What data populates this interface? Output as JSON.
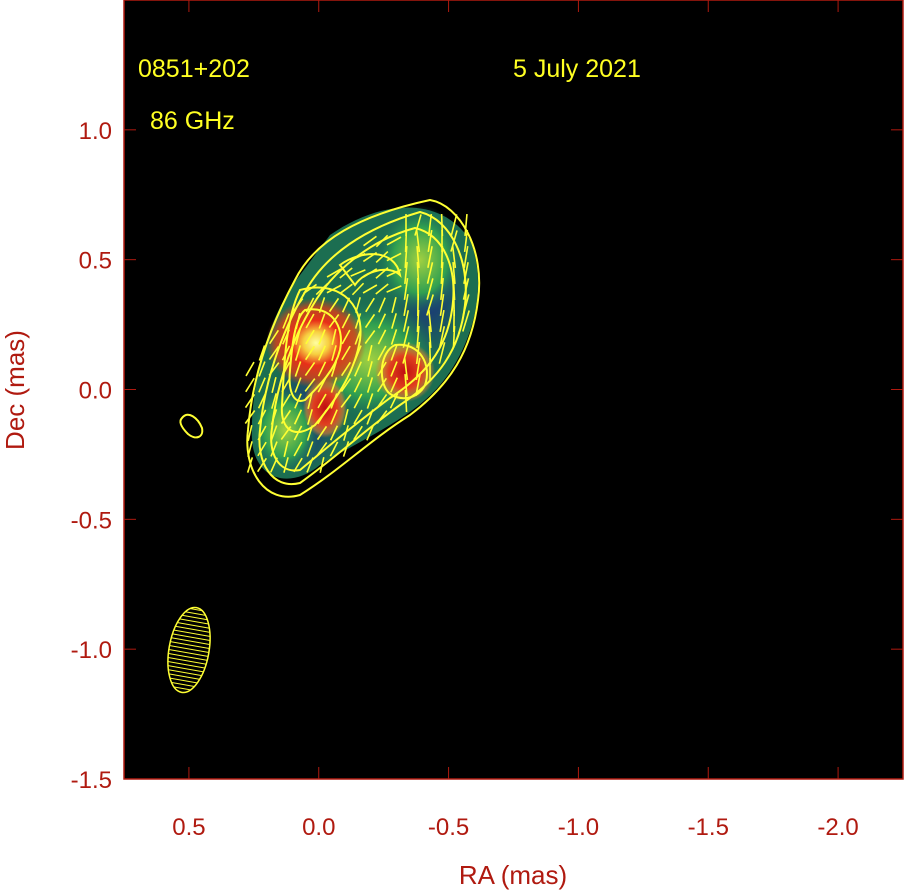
{
  "chart_data": {
    "type": "heatmap",
    "source_name": "0851+202",
    "frequency": "86 GHz",
    "date": "5 July 2021",
    "xlabel": "RA (mas)",
    "ylabel": "Dec (mas)",
    "xlim": [
      0.75,
      -2.25
    ],
    "ylim": [
      -1.5,
      1.5
    ],
    "xticks": [
      0.5,
      0.0,
      -0.5,
      -1.0,
      -1.5,
      -2.0
    ],
    "xtick_labels": [
      "0.5",
      "0.0",
      "-0.5",
      "-1.0",
      "-1.5",
      "-2.0"
    ],
    "yticks": [
      1.0,
      0.5,
      0.0,
      -0.5,
      -1.0,
      -1.5
    ],
    "ytick_labels": [
      "1.0",
      "0.5",
      "0.0",
      "-0.5",
      "-1.0",
      "-1.5"
    ],
    "background_color": "#000000",
    "contour_color": "#ffff33",
    "vector_color": "#ffff33",
    "axis_color": "#b01a10",
    "colormap": [
      "#0a1a5a",
      "#1f9a5a",
      "#7cc83a",
      "#f0a020",
      "#e02818",
      "#ffff80"
    ],
    "emission_components": [
      {
        "ra": 0.02,
        "dec": 0.18,
        "level": 1.0
      },
      {
        "ra": -0.05,
        "dec": -0.05,
        "level": 0.55
      },
      {
        "ra": -0.36,
        "dec": 0.07,
        "level": 0.72
      },
      {
        "ra": -0.45,
        "dec": 0.35,
        "level": 0.45
      },
      {
        "ra": 0.1,
        "dec": -0.22,
        "level": 0.35
      }
    ],
    "beam": {
      "ra": 0.5,
      "dec": -1.0,
      "major_mas": 0.33,
      "minor_mas": 0.17,
      "pa_deg": -10
    }
  }
}
